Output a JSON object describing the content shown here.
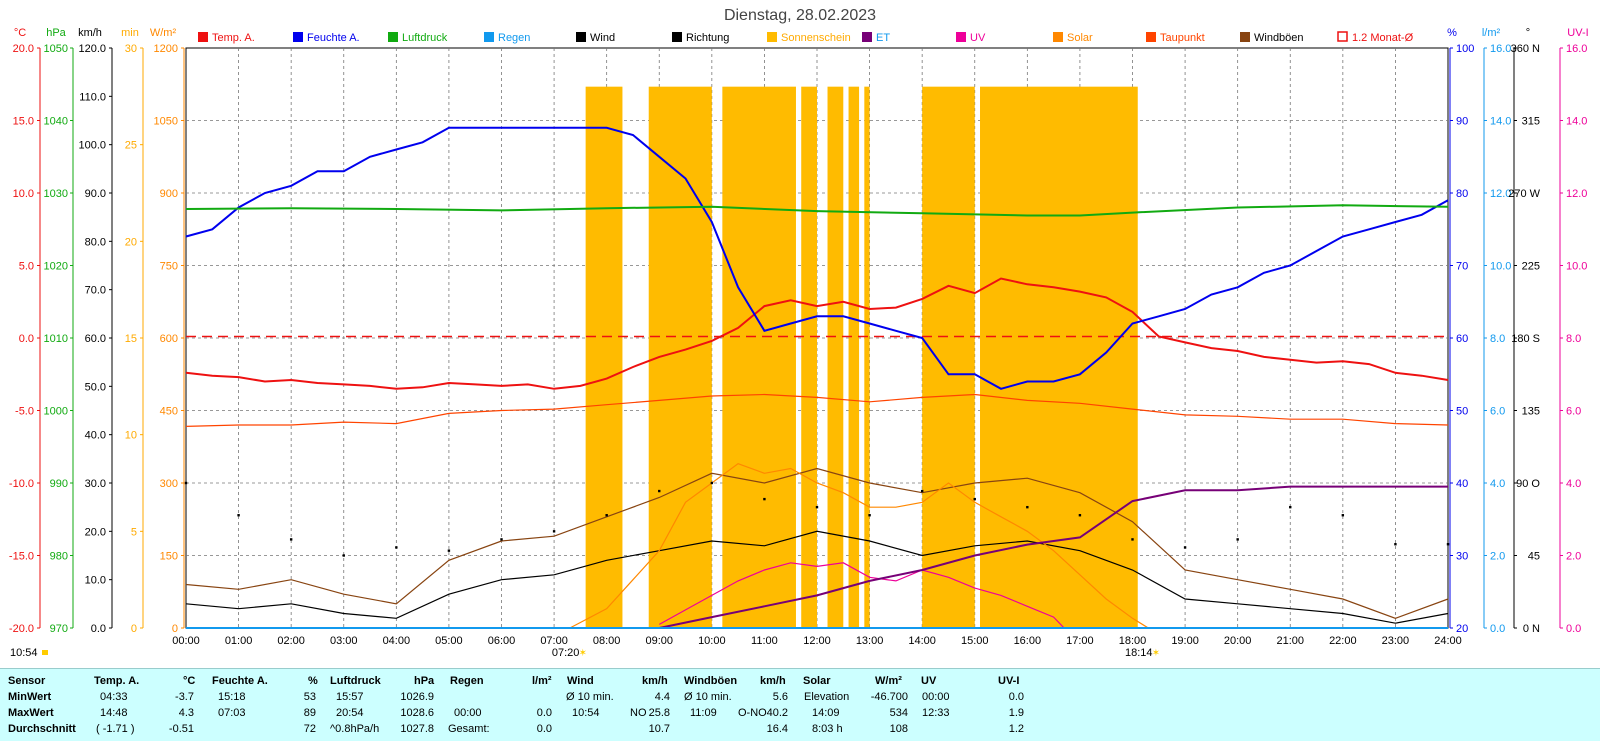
{
  "title": "Dienstag, 28.02.2023",
  "colors": {
    "temp": "#ee1111",
    "humidity": "#0000ee",
    "pressure": "#11aa11",
    "rain": "#1199ee",
    "wind": "#000000",
    "direction": "#000000",
    "sunshine": "#ffbb00",
    "et": "#770077",
    "uv": "#ee0099",
    "solar": "#ff8800",
    "dewpoint": "#ff4400",
    "gusts": "#884411",
    "avg12": "#ee1111",
    "table_bg": "#ccffff"
  },
  "legend": [
    {
      "label": "Temp. A.",
      "color": "#ee1111",
      "text_color": "#ee1111",
      "box": "fill"
    },
    {
      "label": "Feuchte A.",
      "color": "#0000ee",
      "text_color": "#0000ee",
      "box": "fill"
    },
    {
      "label": "Luftdruck",
      "color": "#11aa11",
      "text_color": "#11aa11",
      "box": "fill"
    },
    {
      "label": "Regen",
      "color": "#1199ee",
      "text_color": "#1199ee",
      "box": "fill"
    },
    {
      "label": "Wind",
      "color": "#000000",
      "text_color": "#000000",
      "box": "fill"
    },
    {
      "label": "Richtung",
      "color": "#000000",
      "text_color": "#000000",
      "box": "fill"
    },
    {
      "label": "Sonnenschein",
      "color": "#ffbb00",
      "text_color": "#ffaa00",
      "box": "fill"
    },
    {
      "label": "ET",
      "color": "#770077",
      "text_color": "#1199ee",
      "box": "fill"
    },
    {
      "label": "UV",
      "color": "#ee0099",
      "text_color": "#ee0099",
      "box": "fill"
    },
    {
      "label": "Solar",
      "color": "#ff8800",
      "text_color": "#ff8800",
      "box": "fill"
    },
    {
      "label": "Taupunkt",
      "color": "#ff4400",
      "text_color": "#ff4400",
      "box": "fill"
    },
    {
      "label": "Windböen",
      "color": "#884411",
      "text_color": "#000000",
      "box": "fill"
    },
    {
      "label": "1.2 Monat-Ø",
      "color": "#ee1111",
      "text_color": "#ee1111",
      "box": "outline"
    }
  ],
  "left_axes": [
    {
      "unit": "°C",
      "color": "#ee1111",
      "ticks": [
        "20.0",
        "15.0",
        "10.0",
        "5.0",
        "0.0",
        "-5.0",
        "-10.0",
        "-15.0",
        "-20.0"
      ]
    },
    {
      "unit": "hPa",
      "color": "#11aa11",
      "ticks": [
        "1050",
        "1040",
        "1030",
        "1020",
        "1010",
        "1000",
        "990",
        "980",
        "970"
      ]
    },
    {
      "unit": "km/h",
      "color": "#000000",
      "ticks": [
        "120.0",
        "110.0",
        "100.0",
        "90.0",
        "80.0",
        "70.0",
        "60.0",
        "50.0",
        "40.0",
        "30.0",
        "20.0",
        "10.0",
        "0.0"
      ]
    },
    {
      "unit": "min",
      "color": "#ffaa00",
      "ticks": [
        "30",
        "25",
        "20",
        "15",
        "10",
        "5",
        "0"
      ]
    },
    {
      "unit": "W/m²",
      "color": "#ff8800",
      "ticks": [
        "1200",
        "1050",
        "900",
        "750",
        "600",
        "450",
        "300",
        "150",
        "0"
      ]
    }
  ],
  "right_axes": [
    {
      "unit": "%",
      "color": "#0000ee",
      "ticks": [
        "100",
        "90",
        "80",
        "70",
        "60",
        "50",
        "40",
        "30",
        "20"
      ]
    },
    {
      "unit": "l/m²",
      "color": "#1199ee",
      "ticks": [
        "16.0",
        "14.0",
        "12.0",
        "10.0",
        "8.0",
        "6.0",
        "4.0",
        "2.0",
        "0.0"
      ]
    },
    {
      "unit": "°",
      "color": "#000000",
      "ticks": [
        "360 N",
        "315",
        "270 W",
        "225",
        "180 S",
        "135",
        "90 O",
        "45",
        "0 N"
      ]
    },
    {
      "unit": "UV-I",
      "color": "#ee0099",
      "ticks": [
        "16.0",
        "14.0",
        "12.0",
        "10.0",
        "8.0",
        "6.0",
        "4.0",
        "2.0",
        "0.0"
      ]
    }
  ],
  "time_ticks": [
    "00:00",
    "01:00",
    "02:00",
    "03:00",
    "04:00",
    "05:00",
    "06:00",
    "07:00",
    "08:00",
    "09:00",
    "10:00",
    "11:00",
    "12:00",
    "13:00",
    "14:00",
    "15:00",
    "16:00",
    "17:00",
    "18:00",
    "19:00",
    "20:00",
    "21:00",
    "22:00",
    "23:00",
    "24:00"
  ],
  "sunrise": "07:20",
  "sunset": "18:14",
  "corner_time": "10:54",
  "chart_data": {
    "type": "line",
    "title": "Dienstag, 28.02.2023",
    "x_unit": "hour",
    "xlim": [
      0,
      24
    ],
    "ylim": {
      "temp_c": [
        -20,
        20
      ],
      "pressure_hpa": [
        970,
        1050
      ],
      "wind_kmh": [
        0,
        120
      ],
      "sun_min": [
        0,
        30
      ],
      "solar_wm2": [
        0,
        1200
      ],
      "humidity_pct": [
        20,
        100
      ],
      "rain_lm2": [
        0,
        16
      ],
      "dir_deg": [
        0,
        360
      ],
      "uv_index": [
        0,
        16
      ]
    },
    "avg12_temp_c": 0.1,
    "series": [
      {
        "name": "Temp. A.",
        "axis": "temp_c",
        "x": [
          0,
          0.5,
          1,
          1.5,
          2,
          2.5,
          3,
          3.5,
          4,
          4.5,
          5,
          5.5,
          6,
          6.5,
          7,
          7.5,
          8,
          8.5,
          9,
          9.5,
          10,
          10.5,
          11,
          11.5,
          12,
          12.5,
          13,
          13.5,
          14,
          14.5,
          15,
          15.5,
          16,
          16.5,
          17,
          17.5,
          18,
          18.5,
          19,
          19.5,
          20,
          20.5,
          21,
          21.5,
          22,
          22.5,
          23,
          23.5,
          24
        ],
        "y": [
          -2.4,
          -2.6,
          -2.7,
          -3.0,
          -2.9,
          -3.1,
          -3.2,
          -3.3,
          -3.5,
          -3.4,
          -3.1,
          -3.2,
          -3.3,
          -3.2,
          -3.5,
          -3.3,
          -2.8,
          -2.0,
          -1.3,
          -0.8,
          -0.2,
          0.7,
          2.2,
          2.6,
          2.2,
          2.5,
          2.0,
          2.1,
          2.7,
          3.6,
          3.1,
          4.1,
          3.7,
          3.5,
          3.2,
          2.8,
          1.8,
          0.1,
          -0.3,
          -0.7,
          -0.9,
          -1.3,
          -1.5,
          -1.7,
          -1.6,
          -1.8,
          -2.4,
          -2.6,
          -2.9
        ]
      },
      {
        "name": "Feuchte A.",
        "axis": "humidity_pct",
        "x": [
          0,
          0.5,
          1,
          1.5,
          2,
          2.5,
          3,
          3.5,
          4,
          4.5,
          5,
          5.5,
          6,
          6.5,
          7,
          7.5,
          8,
          8.5,
          9,
          9.5,
          10,
          10.5,
          11,
          11.5,
          12,
          12.5,
          13,
          13.5,
          14,
          14.5,
          15,
          15.5,
          16,
          16.5,
          17,
          17.5,
          18,
          18.5,
          19,
          19.5,
          20,
          20.5,
          21,
          21.5,
          22,
          22.5,
          23,
          23.5,
          24
        ],
        "y": [
          74,
          75,
          78,
          80,
          81,
          83,
          83,
          85,
          86,
          87,
          89,
          89,
          89,
          89,
          89,
          89,
          89,
          88,
          85,
          82,
          76,
          67,
          61,
          62,
          63,
          63,
          62,
          61,
          60,
          55,
          55,
          53,
          54,
          54,
          55,
          58,
          62,
          63,
          64,
          66,
          67,
          69,
          70,
          72,
          74,
          75,
          76,
          77,
          79
        ]
      },
      {
        "name": "Luftdruck",
        "axis": "pressure_hpa",
        "x": [
          0,
          2,
          4,
          6,
          8,
          10,
          12,
          14,
          16,
          17,
          18,
          20,
          22,
          24
        ],
        "y": [
          1027.8,
          1027.9,
          1027.8,
          1027.6,
          1027.9,
          1028.1,
          1027.5,
          1027.2,
          1026.9,
          1026.9,
          1027.3,
          1028.0,
          1028.3,
          1028.1
        ]
      },
      {
        "name": "Taupunkt",
        "axis": "temp_c",
        "x": [
          0,
          1,
          2,
          3,
          4,
          5,
          6,
          7,
          8,
          9,
          10,
          11,
          12,
          13,
          14,
          15,
          16,
          17,
          18,
          19,
          20,
          21,
          22,
          23,
          24
        ],
        "y": [
          -6.1,
          -6.0,
          -6.0,
          -5.8,
          -5.9,
          -5.2,
          -5.0,
          -4.9,
          -4.6,
          -4.3,
          -4.0,
          -3.9,
          -4.1,
          -4.4,
          -4.1,
          -3.9,
          -4.3,
          -4.5,
          -4.9,
          -5.3,
          -5.4,
          -5.6,
          -5.6,
          -5.9,
          -6.0
        ]
      },
      {
        "name": "Wind",
        "axis": "wind_kmh",
        "x": [
          0,
          1,
          2,
          3,
          4,
          5,
          6,
          7,
          8,
          9,
          10,
          11,
          12,
          13,
          14,
          15,
          16,
          17,
          18,
          19,
          20,
          21,
          22,
          23,
          24
        ],
        "y": [
          5,
          4,
          5,
          3,
          2,
          7,
          10,
          11,
          14,
          16,
          18,
          17,
          20,
          18,
          15,
          17,
          18,
          16,
          12,
          6,
          5,
          4,
          3,
          1,
          3
        ]
      },
      {
        "name": "Windböen",
        "axis": "wind_kmh",
        "x": [
          0,
          1,
          2,
          3,
          4,
          5,
          6,
          7,
          8,
          9,
          10,
          11,
          12,
          13,
          14,
          15,
          16,
          17,
          18,
          19,
          20,
          21,
          22,
          23,
          24
        ],
        "y": [
          9,
          8,
          10,
          7,
          5,
          14,
          18,
          19,
          23,
          27,
          32,
          30,
          33,
          30,
          28,
          30,
          31,
          28,
          22,
          12,
          10,
          8,
          6,
          2,
          6
        ]
      },
      {
        "name": "Solar",
        "axis": "solar_wm2",
        "x": [
          7.3,
          8,
          8.5,
          9,
          9.5,
          10,
          10.5,
          11,
          11.5,
          12,
          12.5,
          13,
          13.5,
          14,
          14.5,
          15,
          15.5,
          16,
          16.5,
          17,
          17.5,
          18,
          18.3
        ],
        "y": [
          0,
          40,
          100,
          160,
          260,
          300,
          340,
          320,
          330,
          300,
          280,
          250,
          250,
          260,
          300,
          260,
          230,
          200,
          160,
          110,
          60,
          20,
          0
        ]
      },
      {
        "name": "UV",
        "axis": "uv_index",
        "x": [
          9,
          9.5,
          10,
          10.5,
          11,
          11.5,
          12,
          12.5,
          13,
          13.5,
          14,
          14.5,
          15,
          15.5,
          16,
          16.5,
          16.7
        ],
        "y": [
          0.1,
          0.5,
          0.9,
          1.3,
          1.6,
          1.8,
          1.7,
          1.8,
          1.4,
          1.3,
          1.6,
          1.4,
          1.1,
          0.9,
          0.6,
          0.3,
          0.0
        ]
      },
      {
        "name": "ET",
        "axis": "uv_index",
        "x": [
          9,
          10,
          11,
          12,
          13,
          14,
          15,
          16,
          17,
          18,
          19,
          20,
          21,
          22,
          23,
          24
        ],
        "y": [
          0,
          0.3,
          0.6,
          0.9,
          1.3,
          1.6,
          2.0,
          2.3,
          2.5,
          3.5,
          3.8,
          3.8,
          3.9,
          3.9,
          3.9,
          3.9
        ]
      },
      {
        "name": "Regen",
        "axis": "rain_lm2",
        "x": [
          0,
          24
        ],
        "y": [
          0,
          0
        ]
      },
      {
        "name": "Richtung",
        "axis": "dir_deg",
        "x": [
          0,
          1,
          2,
          3,
          4,
          5,
          6,
          7,
          8,
          9,
          10,
          11,
          12,
          13,
          14,
          15,
          16,
          17,
          18,
          19,
          20,
          21,
          22,
          23,
          24
        ],
        "y": [
          90,
          70,
          55,
          45,
          50,
          48,
          55,
          60,
          70,
          85,
          90,
          80,
          75,
          70,
          85,
          80,
          75,
          70,
          55,
          50,
          55,
          75,
          70,
          52,
          52
        ]
      }
    ],
    "sunshine_intervals": [
      [
        7.6,
        8.3
      ],
      [
        8.8,
        10.0
      ],
      [
        10.2,
        11.6
      ],
      [
        11.7,
        12.0
      ],
      [
        12.2,
        12.5
      ],
      [
        12.6,
        12.8
      ],
      [
        12.9,
        13.0
      ],
      [
        14.0,
        15.0
      ],
      [
        15.1,
        18.1
      ]
    ],
    "sunshine_min": 28
  },
  "table": {
    "header": {
      "sensor": "Sensor",
      "temp": "Temp. A.",
      "temp_u": "°C",
      "hum": "Feuchte A.",
      "hum_u": "%",
      "press": "Luftdruck",
      "press_u": "hPa",
      "rain": "Regen",
      "rain_u": "l/m²",
      "wind": "Wind",
      "wind_u": "km/h",
      "gust": "Windböen",
      "gust_u": "km/h",
      "solar": "Solar",
      "solar_u": "W/m²",
      "uv": "UV",
      "uv_u": "UV-I"
    },
    "min": {
      "label": "MinWert",
      "temp_t": "04:33",
      "temp_v": "-3.7",
      "hum_t": "15:18",
      "hum_v": "53",
      "press_t": "15:57",
      "press_v": "1026.9",
      "rain_t": "",
      "rain_v": "",
      "wind_t": "Ø 10 min.",
      "wind_v": "4.4",
      "gust_t": "Ø 10 min.",
      "gust_v": "5.6",
      "solar_t": "Elevation",
      "solar_v": "-46.700",
      "uv_t": "00:00",
      "uv_v": "0.0"
    },
    "max": {
      "label": "MaxWert",
      "temp_t": "14:48",
      "temp_v": "4.3",
      "hum_t": "07:03",
      "hum_v": "89",
      "press_t": "20:54",
      "press_v": "1028.6",
      "rain_t": "00:00",
      "rain_v": "0.0",
      "wind_t": "10:54",
      "wind_d": "NO",
      "wind_v": "25.8",
      "gust_t": "11:09",
      "gust_d": "O-NO",
      "gust_v": "40.2",
      "solar_t": "14:09",
      "solar_v": "534",
      "uv_t": "12:33",
      "uv_v": "1.9"
    },
    "avg": {
      "label": "Durchschnitt",
      "temp_t": "( -1.71 )",
      "temp_v": "-0.51",
      "hum_t": "",
      "hum_v": "72",
      "press_t": "^0.8hPa/h",
      "press_v": "1027.8",
      "rain_t": "Gesamt:",
      "rain_v": "0.0",
      "wind_t": "",
      "wind_v": "10.7",
      "gust_t": "",
      "gust_v": "16.4",
      "solar_t": "8:03 h",
      "solar_v": "108",
      "uv_t": "",
      "uv_v": "1.2"
    }
  }
}
